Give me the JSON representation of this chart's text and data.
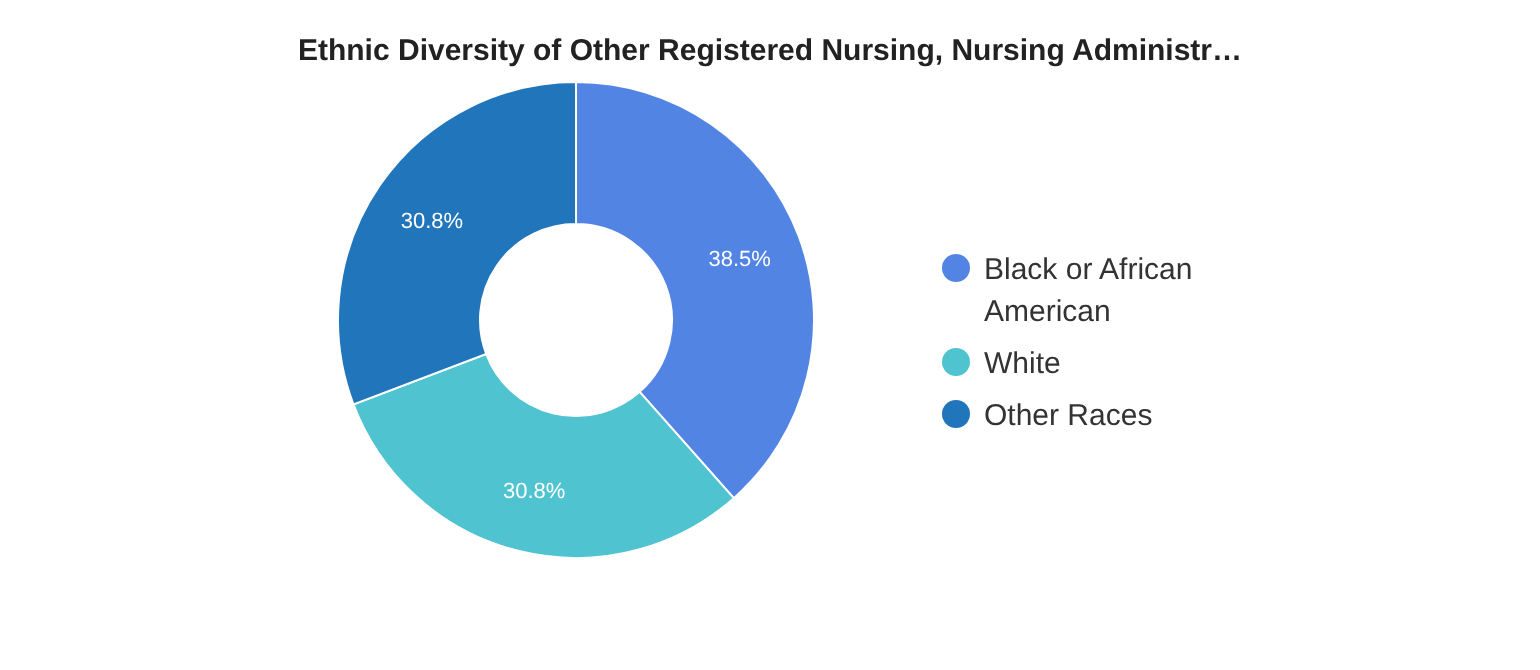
{
  "chart_data": {
    "type": "donut",
    "title": "Ethnic Diversity of Other Registered Nursing, Nursing Administr…",
    "categories": [
      "Black or African American",
      "White",
      "Other Races"
    ],
    "values": [
      38.5,
      30.8,
      30.8
    ],
    "colors": [
      "#5284e3",
      "#4fc3cf",
      "#2175bb"
    ],
    "value_labels": [
      "38.5%",
      "30.8%",
      "30.8%"
    ],
    "legend": "right"
  }
}
